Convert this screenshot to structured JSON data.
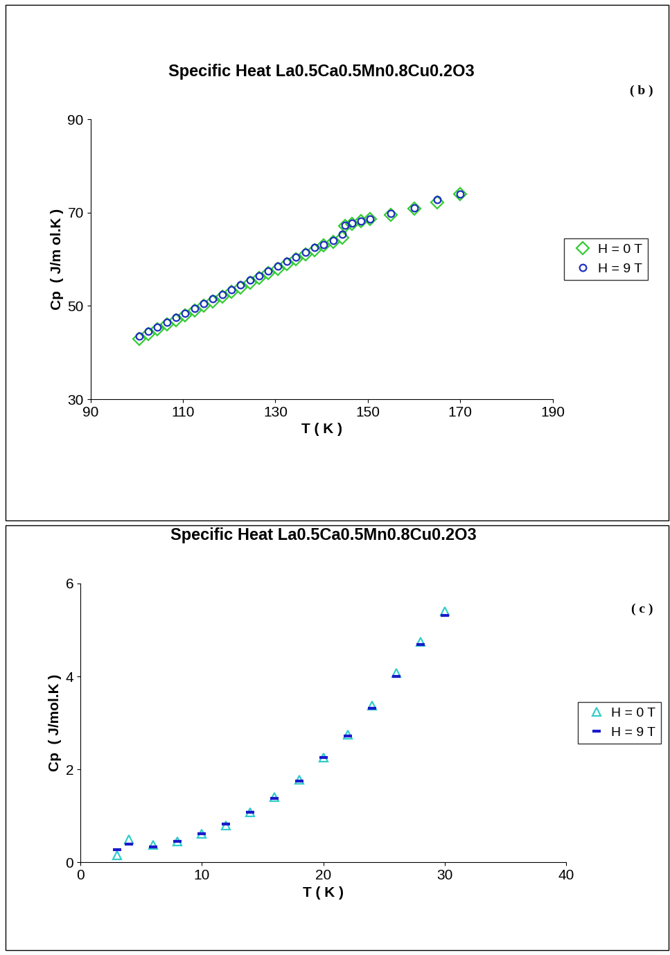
{
  "chart_data": [
    {
      "type": "scatter",
      "title": "Specific Heat La0.5Ca0.5Mn0.8Cu0.2O3",
      "annotation": "( b )",
      "x_label": "T ( K )",
      "y_label": "Cp  ( J/m ol.K )",
      "xlim": [
        90,
        190
      ],
      "xticks": [
        90,
        110,
        130,
        150,
        170,
        190
      ],
      "ylim": [
        30,
        90
      ],
      "yticks": [
        30,
        50,
        70,
        90
      ],
      "legend": "right",
      "series": [
        {
          "name": "H = 0 T",
          "color": "#33cc33",
          "marker": "diamond",
          "x": [
            100.5,
            102.5,
            104.5,
            106.5,
            108.5,
            110.5,
            112.5,
            114.5,
            116.5,
            118.5,
            120.5,
            122.5,
            124.5,
            126.5,
            128.5,
            130.5,
            132.5,
            134.5,
            136.5,
            138.5,
            140.5,
            142.5,
            144.5,
            145,
            146.5,
            148.5,
            150.5,
            155,
            160,
            165,
            170
          ],
          "values": [
            43.0,
            44.0,
            45.0,
            46.0,
            47.0,
            48.0,
            49.0,
            50.0,
            51.0,
            52.0,
            53.0,
            54.0,
            55.0,
            56.0,
            57.0,
            58.0,
            59.0,
            60.0,
            61.0,
            62.0,
            63.0,
            63.8,
            64.6,
            67.2,
            67.6,
            68.2,
            68.6,
            69.6,
            70.8,
            72.2,
            74.0
          ]
        },
        {
          "name": "H = 9 T",
          "color": "#1f2fbf",
          "marker": "circle",
          "x": [
            100.5,
            102.5,
            104.5,
            106.5,
            108.5,
            110.5,
            112.5,
            114.5,
            116.5,
            118.5,
            120.5,
            122.5,
            124.5,
            126.5,
            128.5,
            130.5,
            132.5,
            134.5,
            136.5,
            138.5,
            140.5,
            142.5,
            144.5,
            145,
            146.5,
            148.5,
            150.5,
            155,
            160,
            165,
            170
          ],
          "values": [
            43.5,
            44.5,
            45.5,
            46.5,
            47.5,
            48.5,
            49.5,
            50.5,
            51.5,
            52.5,
            53.5,
            54.5,
            55.5,
            56.5,
            57.5,
            58.5,
            59.5,
            60.5,
            61.5,
            62.5,
            63.2,
            64.0,
            65.4,
            67.3,
            67.7,
            68.2,
            68.7,
            69.9,
            71.0,
            72.8,
            74.0
          ]
        }
      ]
    },
    {
      "type": "scatter",
      "title": "Specific Heat La0.5Ca0.5Mn0.8Cu0.2O3",
      "annotation": "( c )",
      "x_label": "T ( K )",
      "y_label": "Cp  ( J/mol.K )",
      "xlim": [
        0,
        40
      ],
      "xticks": [
        0,
        10,
        20,
        30,
        40
      ],
      "ylim": [
        0,
        6
      ],
      "yticks": [
        0,
        2,
        4,
        6
      ],
      "legend": "right",
      "series": [
        {
          "name": "H = 0 T",
          "color": "#33cccc",
          "marker": "triangle",
          "x": [
            3,
            4,
            6,
            8,
            10,
            12,
            14,
            16,
            18,
            20,
            22,
            24,
            26,
            28,
            30
          ],
          "values": [
            0.15,
            0.5,
            0.38,
            0.45,
            0.62,
            0.8,
            1.08,
            1.4,
            1.78,
            2.25,
            2.75,
            3.38,
            4.08,
            4.75,
            5.4
          ]
        },
        {
          "name": "H = 9 T",
          "color": "#1a1acc",
          "marker": "dash",
          "x": [
            3,
            4,
            6,
            8,
            10,
            12,
            14,
            16,
            18,
            20,
            22,
            24,
            26,
            28,
            30
          ],
          "values": [
            0.28,
            0.4,
            0.33,
            0.45,
            0.62,
            0.82,
            1.08,
            1.38,
            1.75,
            2.25,
            2.72,
            3.32,
            4.0,
            4.68,
            5.32
          ]
        }
      ]
    }
  ]
}
